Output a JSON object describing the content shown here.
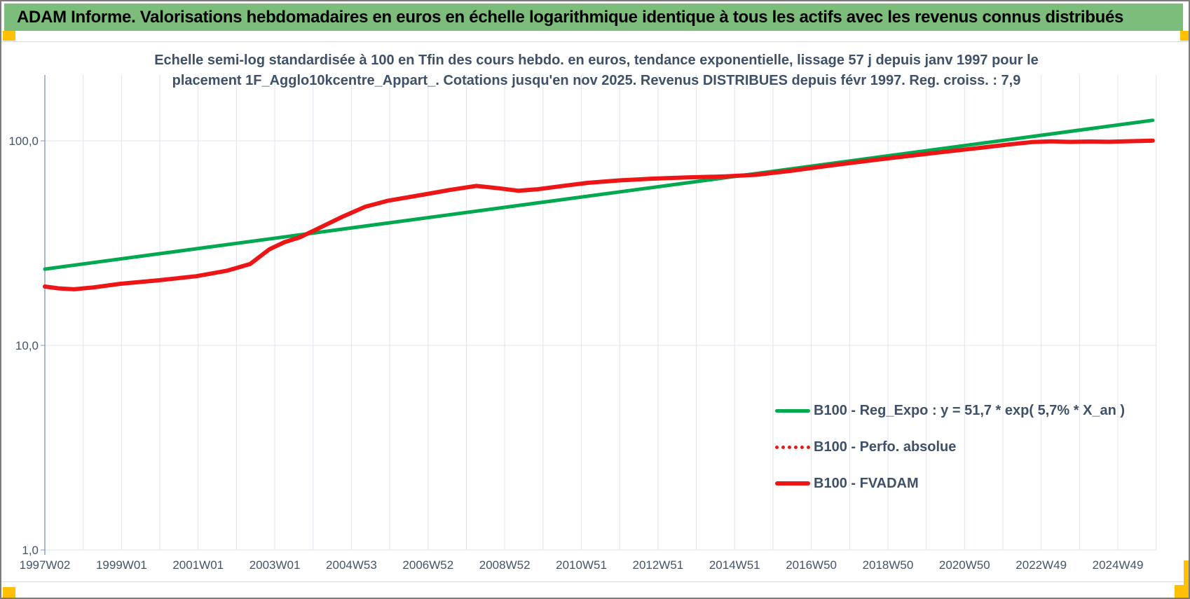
{
  "header": {
    "title": "ADAM Informe. Valorisations hebdomadaires en euros en échelle logarithmique identique à tous les actifs avec les revenus connus distribués",
    "bar_color": "#7cbd7b",
    "marker_color": "#FFC000"
  },
  "chart_data": {
    "type": "line",
    "title_line1": "Echelle semi-log standardisée à 100 en Tfin des cours hebdo. en euros, tendance exponentielle, lissage 57 j depuis janv 1997 pour le",
    "title_line2": "placement 1F_Agglo10kcentre_Appart_. Cotations jusqu'en nov 2025. Revenus DISTRIBUES depuis févr 1997. Reg. croiss. : 7,9",
    "y_axis": {
      "scale": "log",
      "range": [
        1.0,
        210.0
      ],
      "ticks": [
        {
          "label": "1,0",
          "value": 1.0
        },
        {
          "label": "10,0",
          "value": 10.0
        },
        {
          "label": "100,0",
          "value": 100.0
        }
      ]
    },
    "x_axis": {
      "range_years": [
        1997.04,
        2026.1
      ],
      "gridlines": "yearly",
      "ticks": [
        {
          "label": "1997W02",
          "year": 1997.04
        },
        {
          "label": "1999W01",
          "year": 1999.04
        },
        {
          "label": "2001W01",
          "year": 2001.04
        },
        {
          "label": "2003W01",
          "year": 2003.04
        },
        {
          "label": "2004W53",
          "year": 2005.04
        },
        {
          "label": "2006W52",
          "year": 2007.04
        },
        {
          "label": "2008W52",
          "year": 2009.04
        },
        {
          "label": "2010W51",
          "year": 2011.04
        },
        {
          "label": "2012W51",
          "year": 2013.04
        },
        {
          "label": "2014W51",
          "year": 2015.04
        },
        {
          "label": "2016W50",
          "year": 2017.04
        },
        {
          "label": "2018W50",
          "year": 2019.04
        },
        {
          "label": "2020W50",
          "year": 2021.04
        },
        {
          "label": "2022W49",
          "year": 2023.04
        },
        {
          "label": "2024W49",
          "year": 2025.04
        }
      ]
    },
    "legend_position": "inside-bottom-right",
    "series": [
      {
        "key": "reg-expo",
        "name": "B100 - Reg_Expo : y = 51,7 * exp( 5,7% *  X_an )",
        "color": "#00a94f",
        "style": "solid",
        "width": 5,
        "points": [
          [
            1997.04,
            23.6
          ],
          [
            2025.95,
            126.0
          ]
        ]
      },
      {
        "key": "perfo-absolue",
        "name": "B100 - Perfo. absolue",
        "color": "#ed1515",
        "style": "dotted",
        "width": 5,
        "same_points_as": "fvadam",
        "note": "coincides with FVADAM curve (revenues distributed)"
      },
      {
        "key": "fvadam",
        "name": "B100 - FVADAM",
        "color": "#ed1515",
        "style": "solid",
        "width": 6,
        "points": [
          [
            1997.04,
            19.4
          ],
          [
            1997.4,
            19.0
          ],
          [
            1997.8,
            18.8
          ],
          [
            1998.3,
            19.2
          ],
          [
            1999.0,
            20.0
          ],
          [
            2000.0,
            20.8
          ],
          [
            2001.0,
            21.8
          ],
          [
            2001.8,
            23.2
          ],
          [
            2002.4,
            25.0
          ],
          [
            2002.9,
            29.5
          ],
          [
            2003.3,
            32.0
          ],
          [
            2003.7,
            33.8
          ],
          [
            2004.2,
            37.5
          ],
          [
            2004.8,
            42.5
          ],
          [
            2005.4,
            47.6
          ],
          [
            2006.0,
            51.0
          ],
          [
            2006.9,
            54.5
          ],
          [
            2007.6,
            57.5
          ],
          [
            2008.3,
            60.2
          ],
          [
            2008.9,
            58.6
          ],
          [
            2009.4,
            57.0
          ],
          [
            2009.9,
            58.0
          ],
          [
            2010.5,
            60.0
          ],
          [
            2011.2,
            62.3
          ],
          [
            2012.0,
            64.0
          ],
          [
            2012.9,
            65.3
          ],
          [
            2013.8,
            66.2
          ],
          [
            2014.8,
            67.0
          ],
          [
            2015.6,
            68.2
          ],
          [
            2016.5,
            71.3
          ],
          [
            2017.5,
            75.6
          ],
          [
            2018.5,
            79.8
          ],
          [
            2019.5,
            84.0
          ],
          [
            2020.5,
            88.3
          ],
          [
            2021.4,
            92.2
          ],
          [
            2022.2,
            96.0
          ],
          [
            2022.8,
            98.6
          ],
          [
            2023.3,
            99.4
          ],
          [
            2023.8,
            98.8
          ],
          [
            2024.3,
            99.2
          ],
          [
            2024.8,
            98.9
          ],
          [
            2025.4,
            99.6
          ],
          [
            2025.95,
            100.2
          ]
        ]
      }
    ]
  }
}
